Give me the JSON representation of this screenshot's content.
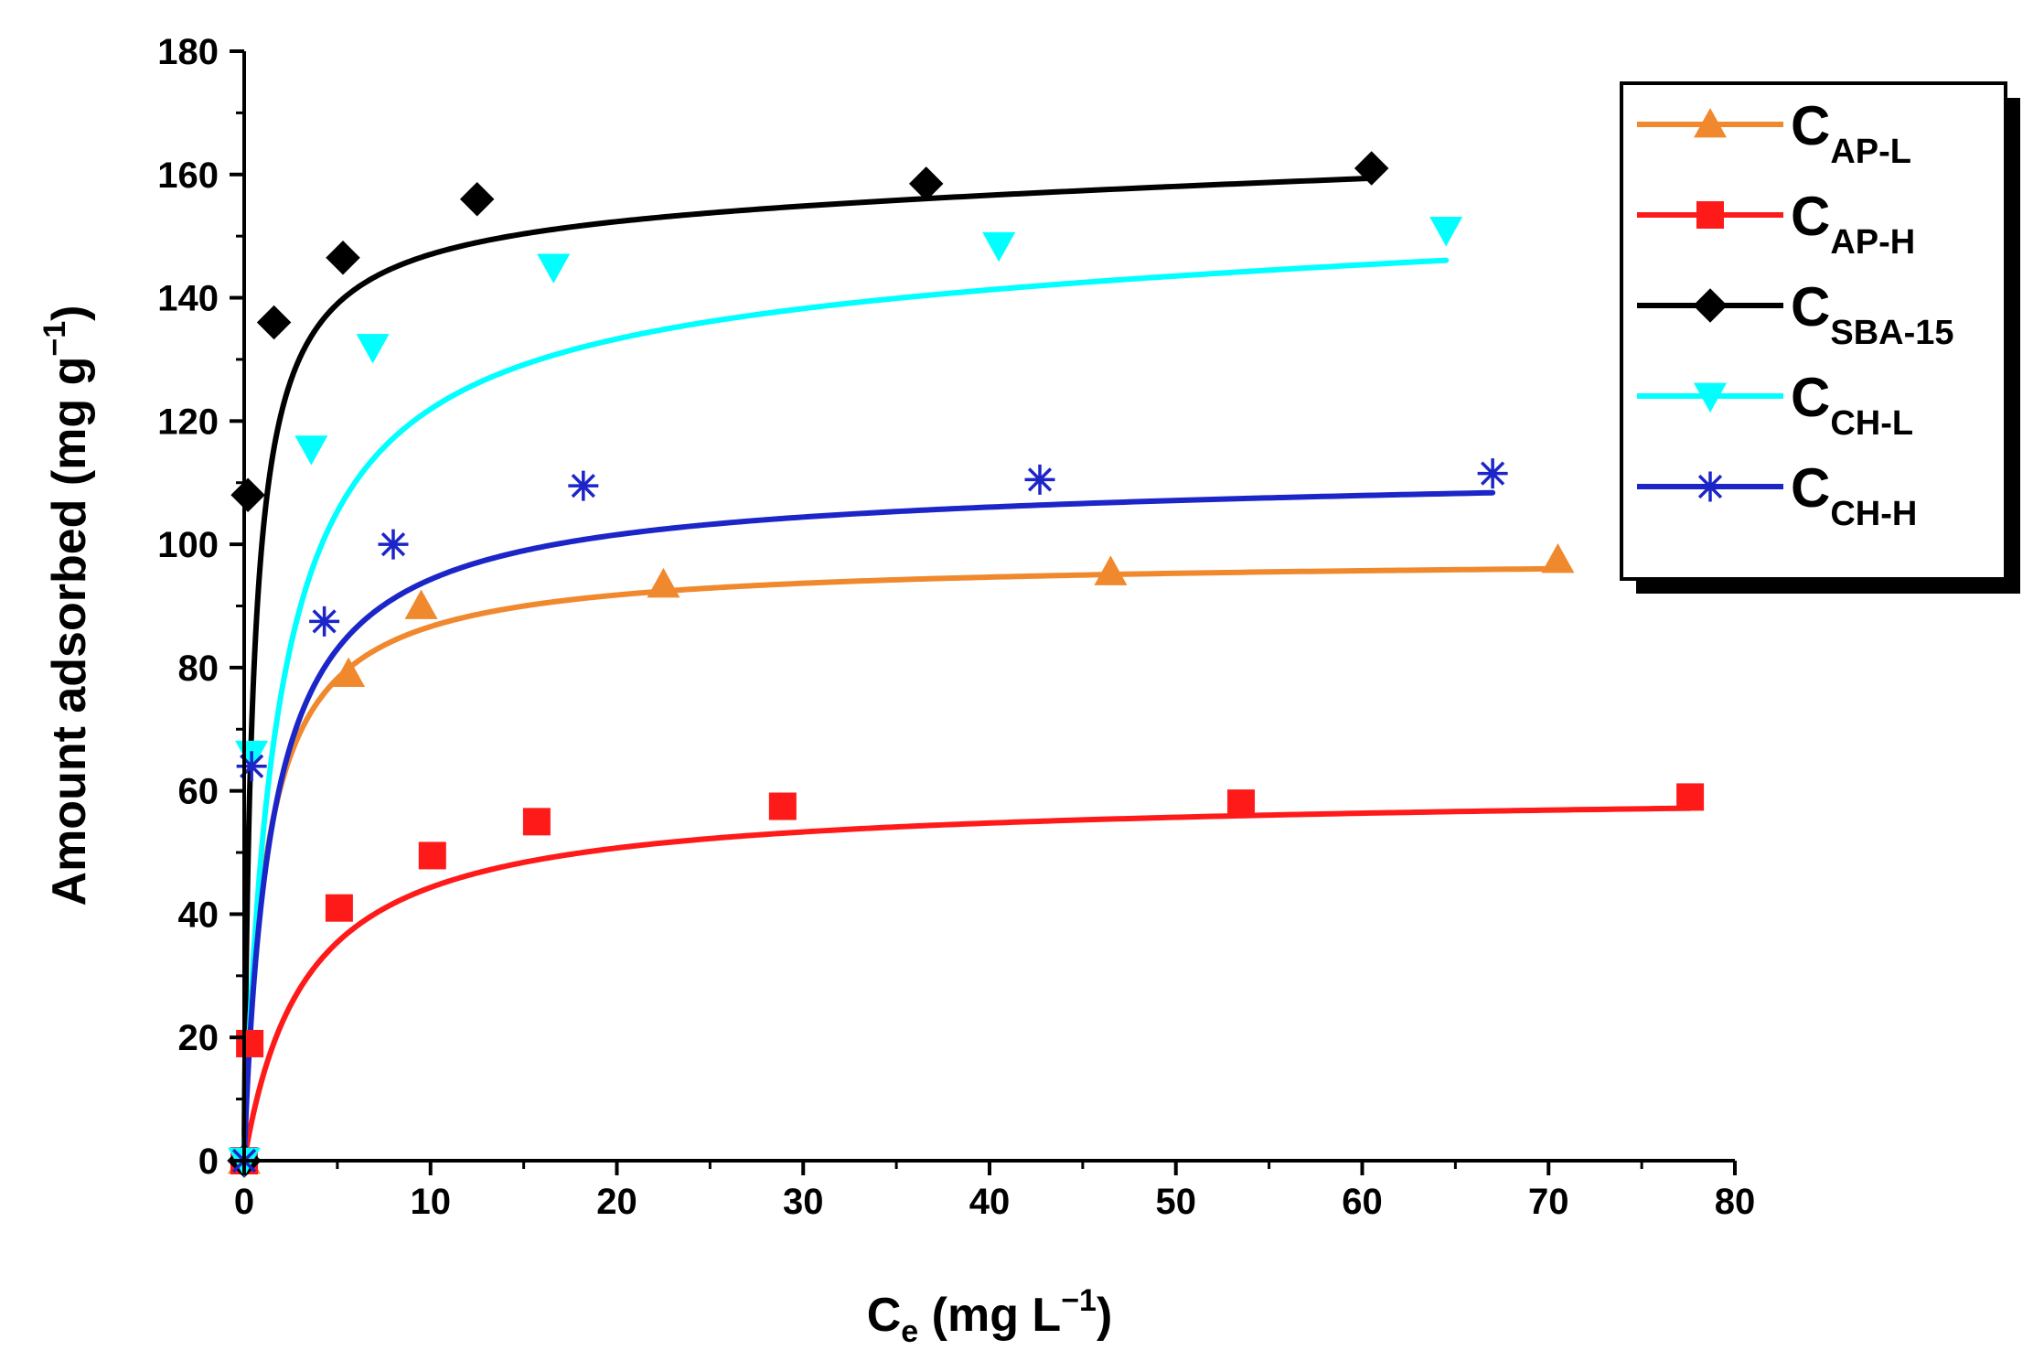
{
  "chart_data": {
    "type": "scatter",
    "title": "",
    "xlabel": {
      "main": "C",
      "sub": "e",
      "rest": " (mg L",
      "sup": "−1",
      "close": ")"
    },
    "ylabel": {
      "main": "Amount adsorbed (mg g",
      "sup": "−1",
      "close": ")"
    },
    "xlim": [
      0,
      80
    ],
    "ylim": [
      0,
      180
    ],
    "xticks": [
      "0",
      "10",
      "20",
      "30",
      "40",
      "50",
      "60",
      "70",
      "80"
    ],
    "yticks": [
      "0",
      "20",
      "40",
      "60",
      "80",
      "100",
      "120",
      "140",
      "160",
      "180"
    ],
    "grid": false,
    "legend_position": "top-right",
    "series": [
      {
        "name": "C",
        "sub": "AP-L",
        "color": "#f0892e",
        "marker": "triangle-up",
        "fit": {
          "qmax": 98,
          "K": 0.85,
          "n": 0.95,
          "linear": 0
        },
        "points": [
          [
            0,
            0
          ],
          [
            5.6,
            79
          ],
          [
            9.5,
            90
          ],
          [
            22.5,
            93.5
          ],
          [
            46.5,
            95.5
          ],
          [
            70.5,
            97.5
          ]
        ]
      },
      {
        "name": "C",
        "sub": "AP-H",
        "color": "#ff1a1a",
        "marker": "square",
        "fit": {
          "qmax": 59,
          "K": 0.3,
          "n": 1.0,
          "linear": 0.008
        },
        "points": [
          [
            0,
            0
          ],
          [
            0.3,
            19
          ],
          [
            5.1,
            41
          ],
          [
            10.1,
            49.5
          ],
          [
            15.7,
            55
          ],
          [
            28.9,
            57.5
          ],
          [
            53.5,
            58
          ],
          [
            77.6,
            59
          ]
        ]
      },
      {
        "name": "C",
        "sub": "SBA-15",
        "color": "#000000",
        "marker": "diamond",
        "fit": {
          "qmax": 156,
          "K": 2.0,
          "n": 0.9,
          "linear": 0.09
        },
        "points": [
          [
            0,
            0
          ],
          [
            0.2,
            108
          ],
          [
            1.6,
            136
          ],
          [
            5.3,
            146.5
          ],
          [
            12.5,
            156
          ],
          [
            36.6,
            158.5
          ],
          [
            60.5,
            161
          ]
        ]
      },
      {
        "name": "C",
        "sub": "CH-L",
        "color": "#00ffff",
        "marker": "triangle-down",
        "fit": {
          "qmax": 145,
          "K": 0.55,
          "n": 0.95,
          "linear": 0.09
        },
        "points": [
          [
            0,
            0
          ],
          [
            0.4,
            66
          ],
          [
            3.6,
            115.5
          ],
          [
            6.9,
            132
          ],
          [
            16.6,
            145
          ],
          [
            40.5,
            148.5
          ],
          [
            64.5,
            151
          ]
        ]
      },
      {
        "name": "C",
        "sub": "CH-H",
        "color": "#1c25c8",
        "marker": "asterisk",
        "fit": {
          "qmax": 110,
          "K": 0.65,
          "n": 0.95,
          "linear": 0.02
        },
        "points": [
          [
            0,
            0
          ],
          [
            0.4,
            64
          ],
          [
            4.3,
            87.5
          ],
          [
            8,
            100
          ],
          [
            18.2,
            109.5
          ],
          [
            42.7,
            110.5
          ],
          [
            67,
            111.5
          ]
        ]
      }
    ]
  }
}
